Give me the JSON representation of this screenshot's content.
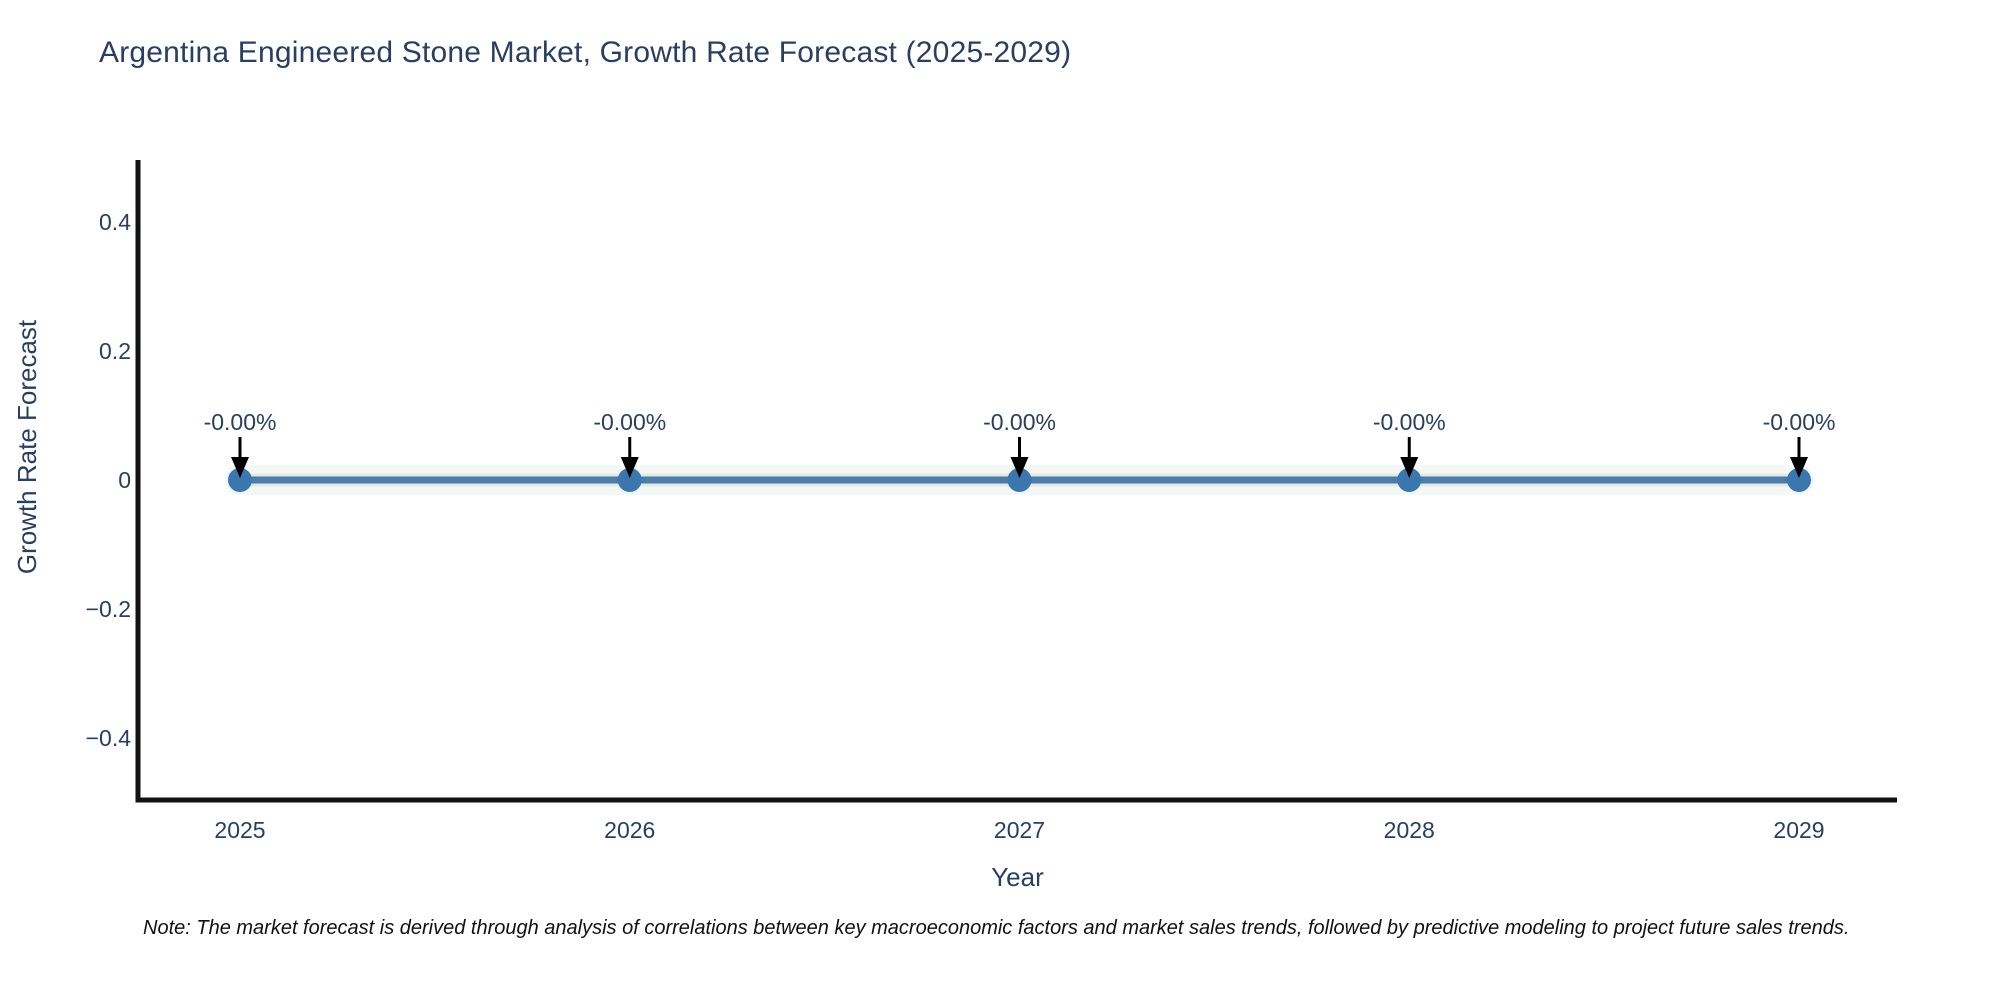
{
  "page": {
    "title": "Argentina Engineered Stone Market, Growth Rate Forecast (2025-2029)",
    "note": "Note: The market forecast is derived through analysis of correlations between key macroeconomic factors and market sales trends, followed by predictive modeling to project future sales trends."
  },
  "colors": {
    "title_text": "#2a3f5f",
    "tick_text": "#2a3f5f",
    "axis_label_text": "#2a3f5f",
    "annotation_text": "#2a3f5f",
    "axis_line": "#121212",
    "series_line": "#4d7ba3",
    "series_halo_inner": "#d8ecf7",
    "series_halo_cream": "#fcf6e9",
    "series_halo_outer": "#f0f8fc",
    "marker_fill": "#3b76af",
    "arrow": "#000000",
    "note_text": "#111111",
    "background": "#ffffff"
  },
  "chart_data": {
    "type": "line",
    "title": "Argentina Engineered Stone Market, Growth Rate Forecast (2025-2029)",
    "xlabel": "Year",
    "ylabel": "Growth Rate Forecast",
    "categories": [
      "2025",
      "2026",
      "2027",
      "2028",
      "2029"
    ],
    "series": [
      {
        "name": "Growth Rate Forecast",
        "values": [
          0,
          0,
          0,
          0,
          0
        ],
        "point_labels": [
          "-0.00%",
          "-0.00%",
          "-0.00%",
          "-0.00%",
          "-0.00%"
        ]
      }
    ],
    "ylim": [
      -0.5,
      0.5
    ],
    "yticks": [
      {
        "value": 0.4,
        "label": "0.4"
      },
      {
        "value": 0.2,
        "label": "0.2"
      },
      {
        "value": 0,
        "label": "0"
      },
      {
        "value": -0.2,
        "label": "−0.2"
      },
      {
        "value": -0.4,
        "label": "−0.4"
      }
    ],
    "grid": false,
    "legend": "none",
    "annotations": "down-arrow-per-point"
  }
}
